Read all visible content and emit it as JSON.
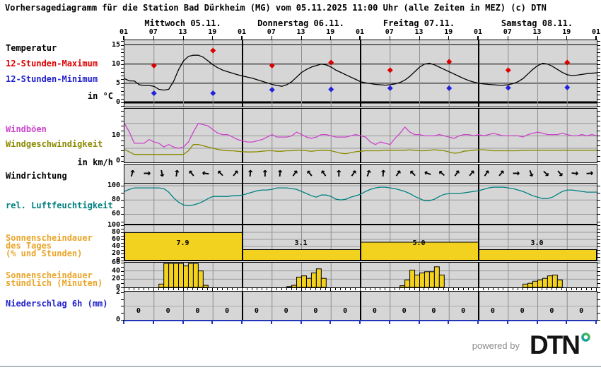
{
  "title": "Vorhersagediagramm für die Station Bad Dürkheim (MG) vom 05.11.2025 11:00 Uhr (alle Zeiten in MEZ)   (c) DTN",
  "days": [
    "Mittwoch 05.11.",
    "Donnerstag 06.11.",
    "Freitag 07.11.",
    "Samstag 08.11."
  ],
  "time_ticks": [
    "01",
    "07",
    "13",
    "19",
    "01",
    "07",
    "13",
    "19",
    "01",
    "07",
    "13",
    "19",
    "01",
    "07",
    "13",
    "19",
    "01"
  ],
  "row_labels": {
    "temperature": {
      "text": "Temperatur",
      "color": "#000000"
    },
    "temp_max": {
      "text": "12-Stunden-Maximum",
      "color": "#dd0000"
    },
    "temp_min": {
      "text": "12-Stunden-Minimum",
      "color": "#2222cc"
    },
    "temp_unit": {
      "text": "in °C",
      "color": "#000000"
    },
    "gusts": {
      "text": "Windböen",
      "color": "#cc44cc"
    },
    "wind_speed": {
      "text": "Windgeschwindigkeit",
      "color": "#8a8a00"
    },
    "wind_unit": {
      "text": "in km/h",
      "color": "#000000"
    },
    "wind_direction": {
      "text": "Windrichtung",
      "color": "#000000"
    },
    "humidity": {
      "text": "rel. Luftfeuchtigkeit",
      "color": "#008080"
    },
    "sun_daily_1": {
      "text": "Sonnenscheindauer",
      "color": "#eaa52a"
    },
    "sun_daily_2": {
      "text": "des Tages",
      "color": "#eaa52a"
    },
    "sun_daily_3": {
      "text": "(% und Stunden)",
      "color": "#eaa52a"
    },
    "sun_hourly_1": {
      "text": "Sonnenscheindauer",
      "color": "#eaa52a"
    },
    "sun_hourly_2": {
      "text": "stündlich (Minuten)",
      "color": "#eaa52a"
    },
    "precip": {
      "text": "Niederschlag 6h (mm)",
      "color": "#2222cc"
    }
  },
  "glyphs": {
    "arrow": "↑"
  },
  "colors": {
    "panel_bg": "#d6d6d6",
    "bar_yellow": "#f2d21f",
    "axis_blue": "#2233bb",
    "bottom_line": "#aeb9c8",
    "dtn_green": "#56b847",
    "dtn_teal": "#009fb0"
  },
  "footer": {
    "powered_by": "powered by",
    "brand": "DTN"
  },
  "chart_data": [
    {
      "id": "temperature",
      "type": "line",
      "ylabel": "in °C",
      "ylim": [
        -2,
        16
      ],
      "yticks": [
        15,
        10,
        5,
        0
      ],
      "x_start": "05.11. 01:00",
      "x_step_hours": 1,
      "series": [
        {
          "name": "Temperatur",
          "color": "#000000",
          "values": [
            6.2,
            5.6,
            5.6,
            4.6,
            4.4,
            4.4,
            4.2,
            3.4,
            3.2,
            3.4,
            5.5,
            8.5,
            10.8,
            12.0,
            12.3,
            12.3,
            11.8,
            10.8,
            9.8,
            9.0,
            8.4,
            8.0,
            7.6,
            7.2,
            6.9,
            6.6,
            6.3,
            5.9,
            5.5,
            5.1,
            4.7,
            4.4,
            4.2,
            4.6,
            5.4,
            6.6,
            7.8,
            8.6,
            9.2,
            9.6,
            10.0,
            9.8,
            9.2,
            8.4,
            7.8,
            7.2,
            6.6,
            6.0,
            5.4,
            5.1,
            4.9,
            4.7,
            4.6,
            4.5,
            4.6,
            4.8,
            5.2,
            5.8,
            6.8,
            8.0,
            9.2,
            10.0,
            10.2,
            9.8,
            9.2,
            8.6,
            8.0,
            7.4,
            6.8,
            6.2,
            5.7,
            5.3,
            5.0,
            4.8,
            4.7,
            4.6,
            4.5,
            4.5,
            4.6,
            4.9,
            5.4,
            6.2,
            7.4,
            8.6,
            9.6,
            10.2,
            10.0,
            9.4,
            8.6,
            7.8,
            7.2,
            7.0,
            7.1,
            7.3,
            7.5,
            7.6,
            7.7
          ]
        }
      ],
      "max_markers": {
        "name": "12-Stunden-Maximum",
        "color": "#dd0000",
        "points": [
          [
            6,
            9.6
          ],
          [
            18,
            13.5
          ],
          [
            30,
            9.6
          ],
          [
            42,
            10.4
          ],
          [
            54,
            8.4
          ],
          [
            66,
            10.6
          ],
          [
            78,
            8.4
          ],
          [
            90,
            10.4
          ]
        ]
      },
      "min_markers": {
        "name": "12-Stunden-Minimum",
        "color": "#2222dd",
        "points": [
          [
            6,
            2.4
          ],
          [
            18,
            2.4
          ],
          [
            30,
            3.3
          ],
          [
            42,
            3.4
          ],
          [
            54,
            3.7
          ],
          [
            66,
            3.7
          ],
          [
            78,
            3.8
          ],
          [
            90,
            3.9
          ]
        ]
      }
    },
    {
      "id": "wind",
      "type": "line",
      "ylabel": "in km/h",
      "ylim": [
        0,
        20
      ],
      "yticks": [
        10,
        0
      ],
      "series": [
        {
          "name": "Windböen",
          "color": "#cc44cc",
          "values": [
            15,
            11.5,
            7,
            7,
            7,
            8.5,
            7.5,
            7,
            5.5,
            6.5,
            5.5,
            5,
            5.5,
            7.5,
            11.5,
            15,
            14.5,
            14,
            12.5,
            11,
            10.5,
            10.5,
            9.5,
            8.5,
            8,
            7.5,
            7.5,
            8,
            8.5,
            9.5,
            10.5,
            9.5,
            9.5,
            9.5,
            10,
            11.5,
            10.5,
            9.5,
            9,
            9.5,
            10.5,
            10.5,
            10,
            9.5,
            9.5,
            9.5,
            10,
            10.5,
            10,
            9.5,
            7.5,
            6.5,
            7.5,
            7,
            6.5,
            9,
            11,
            13.5,
            11.5,
            10.5,
            10.5,
            10,
            10,
            10,
            10.5,
            10,
            9.5,
            9,
            10,
            10.5,
            10.5,
            10,
            10.5,
            10,
            10.5,
            11,
            10.5,
            10,
            10,
            10,
            10,
            9.5,
            10.5,
            11,
            11.5,
            11,
            10.5,
            10.5,
            10.5,
            11,
            10.5,
            10,
            10,
            10.5,
            10,
            10.5,
            10
          ]
        },
        {
          "name": "Windgeschwindigkeit",
          "color": "#8a8a00",
          "values": [
            4.5,
            3.5,
            2.5,
            2.5,
            2.5,
            2.5,
            2.5,
            2.5,
            2.5,
            2.5,
            2.5,
            2.5,
            2.5,
            4,
            6.5,
            6.5,
            6,
            5.5,
            5,
            4.5,
            4.2,
            4,
            4,
            3.8,
            3.6,
            3.5,
            3.5,
            3.6,
            3.8,
            4,
            4,
            3.8,
            3.8,
            4,
            4,
            4.2,
            4.2,
            4,
            3.8,
            4,
            4.2,
            4.2,
            4,
            3.5,
            3,
            2.8,
            3.2,
            3.6,
            3.8,
            4,
            4,
            4,
            4,
            4.2,
            4.2,
            4.2,
            4.2,
            4.2,
            4.4,
            4.2,
            4,
            4,
            4.2,
            4.4,
            4.2,
            4,
            3.5,
            3,
            3.2,
            3.8,
            4,
            4.2,
            4.4,
            4.4,
            4.2,
            4,
            4,
            4,
            4,
            4,
            4,
            4.2,
            4.2,
            4.2,
            4.2,
            4.2,
            4.2,
            4.2,
            4.2,
            4.2,
            4.2,
            4.2,
            4.2,
            4.2,
            4.2,
            4.2,
            4.2
          ]
        }
      ]
    },
    {
      "id": "wind_direction",
      "type": "arrows",
      "name": "Windrichtung",
      "angles_deg_clockwise_from_up": [
        15,
        90,
        170,
        10,
        -40,
        -80,
        -45,
        40,
        5,
        0,
        5,
        35,
        -40,
        -35,
        0,
        35,
        20,
        5,
        35,
        -45,
        -70,
        -50,
        35,
        40,
        35,
        40,
        90,
        160,
        135,
        140,
        95,
        85
      ]
    },
    {
      "id": "humidity",
      "type": "line",
      "ylim": [
        60,
        100
      ],
      "yticks": [
        100,
        80,
        60
      ],
      "series": [
        {
          "name": "rel. Luftfeuchtigkeit",
          "color": "#008080",
          "values": [
            92,
            95,
            97,
            97,
            97,
            97,
            97,
            97,
            96,
            91,
            83,
            77,
            73,
            72,
            73,
            75,
            78,
            82,
            85,
            85,
            85,
            85,
            86,
            86,
            87,
            89,
            91,
            93,
            94,
            94,
            95,
            97,
            97,
            97,
            96,
            95,
            92,
            89,
            86,
            84,
            87,
            87,
            85,
            81,
            80,
            81,
            84,
            86,
            88,
            92,
            95,
            97,
            98,
            98,
            97,
            96,
            94,
            92,
            89,
            85,
            82,
            79,
            79,
            81,
            85,
            88,
            89,
            89,
            89,
            90,
            91,
            92,
            93,
            95,
            97,
            98,
            98,
            98,
            97,
            96,
            94,
            92,
            89,
            86,
            84,
            82,
            82,
            84,
            88,
            92,
            94,
            94,
            93,
            92,
            91,
            91,
            91
          ]
        }
      ]
    },
    {
      "id": "sunshine_daily",
      "type": "bar",
      "unit": "% und Stunden",
      "ylim": [
        0,
        100
      ],
      "yticks": [
        100,
        80,
        60,
        40,
        20,
        0
      ],
      "categories": [
        "Mittwoch 05.11.",
        "Donnerstag 06.11.",
        "Freitag 07.11.",
        "Samstag 08.11."
      ],
      "values_percent": [
        79,
        31,
        52,
        31
      ],
      "labels_hours": [
        "7.9",
        "3.1",
        "5.0",
        "3.0"
      ]
    },
    {
      "id": "sunshine_hourly",
      "type": "bar",
      "unit": "Minuten",
      "ylim": [
        0,
        60
      ],
      "yticks": [
        60,
        40,
        20,
        0
      ],
      "values": [
        0,
        0,
        0,
        0,
        0,
        0,
        0,
        8,
        58,
        58,
        58,
        58,
        52,
        58,
        58,
        40,
        5,
        0,
        0,
        0,
        0,
        0,
        0,
        0,
        0,
        0,
        0,
        0,
        0,
        0,
        0,
        0,
        0,
        2,
        5,
        25,
        28,
        22,
        35,
        45,
        22,
        0,
        0,
        0,
        0,
        0,
        0,
        0,
        0,
        0,
        0,
        0,
        0,
        0,
        0,
        0,
        4,
        18,
        42,
        30,
        35,
        38,
        38,
        50,
        30,
        0,
        0,
        0,
        0,
        0,
        0,
        0,
        0,
        0,
        0,
        0,
        0,
        0,
        0,
        0,
        0,
        8,
        10,
        15,
        18,
        22,
        28,
        30,
        18,
        0,
        0,
        0,
        0,
        0,
        0,
        0
      ]
    },
    {
      "id": "precipitation_6h",
      "type": "text",
      "unit": "mm",
      "ylim": [
        0,
        2
      ],
      "yticks": [
        2,
        0
      ],
      "hours": [
        3,
        9,
        15,
        21,
        27,
        33,
        39,
        45,
        51,
        57,
        63,
        69,
        75,
        81,
        87,
        93
      ],
      "values": [
        "0",
        "0",
        "0",
        "0",
        "0",
        "0",
        "0",
        "0",
        "0",
        "0",
        "0",
        "0",
        "0",
        "0",
        "0",
        "0"
      ]
    }
  ]
}
